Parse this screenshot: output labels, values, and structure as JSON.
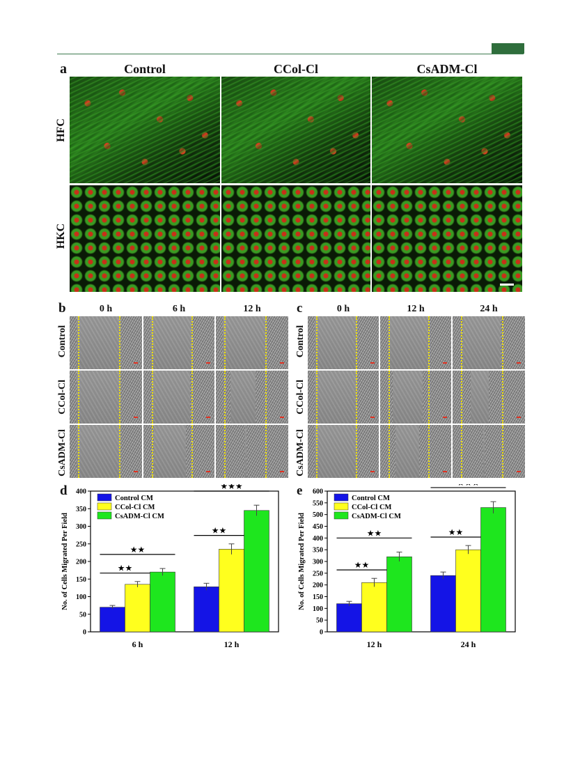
{
  "panel_a": {
    "letter": "a",
    "columns": [
      "Control",
      "CCol-Cl",
      "CsADM-Cl"
    ],
    "rows": [
      "HFC",
      "HKC"
    ]
  },
  "panel_b": {
    "letter": "b",
    "columns": [
      "0 h",
      "6 h",
      "12 h"
    ],
    "rows": [
      "Control",
      "CCol-Cl",
      "CsADM-Cl"
    ]
  },
  "panel_c": {
    "letter": "c",
    "columns": [
      "0 h",
      "12 h",
      "24 h"
    ],
    "rows": [
      "Control",
      "CCol-Cl",
      "CsADM-Cl"
    ]
  },
  "colors": {
    "control": "#1414e6",
    "ccol": "#ffff1e",
    "csadm": "#1ee61e",
    "header_accent": "#2f6e3c"
  },
  "chart_data": [
    {
      "panel": "d",
      "type": "bar",
      "ylabel": "No. of Cells Migrated Per Field",
      "ylim": [
        0,
        400
      ],
      "yticks": [
        0,
        50,
        100,
        150,
        200,
        250,
        300,
        350,
        400
      ],
      "categories": [
        "6 h",
        "12 h"
      ],
      "series": [
        {
          "name": "Control CM",
          "values": [
            70,
            128
          ],
          "errors": [
            5,
            10
          ]
        },
        {
          "name": "CCol-Cl CM",
          "values": [
            135,
            235
          ],
          "errors": [
            8,
            15
          ]
        },
        {
          "name": "CsADM-Cl CM",
          "values": [
            170,
            345
          ],
          "errors": [
            10,
            15
          ]
        }
      ],
      "legend": "top-left",
      "significance": [
        {
          "category": 0,
          "from": 0,
          "to": 1,
          "label": "★★"
        },
        {
          "category": 0,
          "from": 0,
          "to": 2,
          "label": "★★"
        },
        {
          "category": 1,
          "from": 0,
          "to": 1,
          "label": "★★"
        },
        {
          "category": 1,
          "from": 0,
          "to": 2,
          "label": "★★★"
        }
      ]
    },
    {
      "panel": "e",
      "type": "bar",
      "ylabel": "No. of Cells Migrated Per Field",
      "ylim": [
        0,
        600
      ],
      "yticks": [
        0,
        50,
        100,
        150,
        200,
        250,
        300,
        350,
        400,
        450,
        500,
        550,
        600
      ],
      "categories": [
        "12 h",
        "24 h"
      ],
      "series": [
        {
          "name": "Control CM",
          "values": [
            120,
            240
          ],
          "errors": [
            10,
            15
          ]
        },
        {
          "name": "CCol-Cl CM",
          "values": [
            210,
            350
          ],
          "errors": [
            18,
            18
          ]
        },
        {
          "name": "CsADM-Cl CM",
          "values": [
            320,
            530
          ],
          "errors": [
            20,
            25
          ]
        }
      ],
      "legend": "top-left",
      "significance": [
        {
          "category": 0,
          "from": 0,
          "to": 1,
          "label": "★★"
        },
        {
          "category": 0,
          "from": 0,
          "to": 2,
          "label": "★★"
        },
        {
          "category": 1,
          "from": 0,
          "to": 1,
          "label": "★★"
        },
        {
          "category": 1,
          "from": 0,
          "to": 2,
          "label": "★★★"
        }
      ]
    }
  ]
}
